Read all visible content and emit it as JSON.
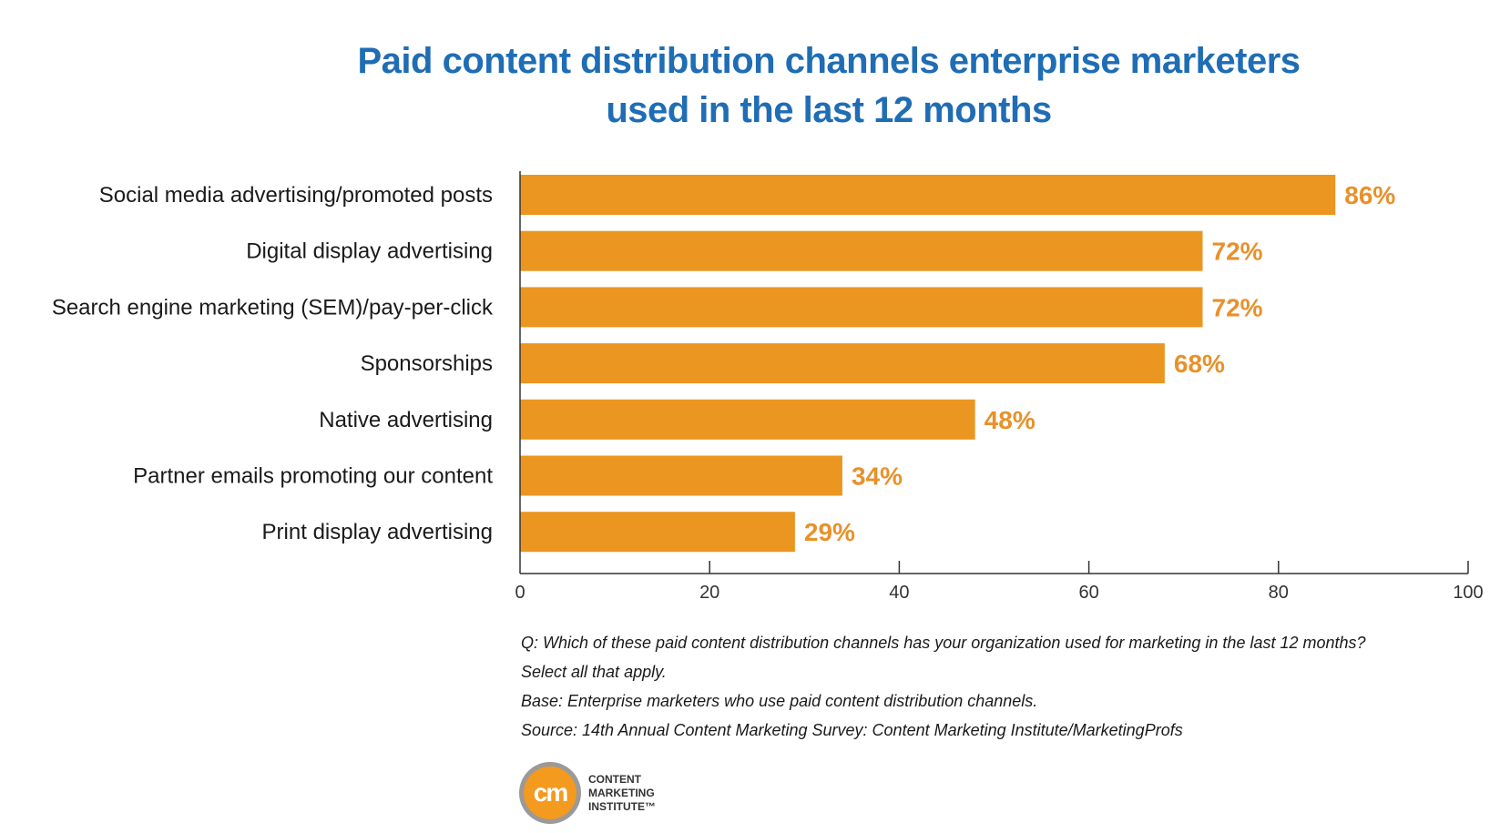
{
  "title": {
    "line1": "Paid content distribution channels enterprise marketers",
    "line2": "used in the last 12 months"
  },
  "colors": {
    "bar": "#eb9621",
    "value_label": "#e8912a",
    "title": "#1f6db5",
    "axis": "#333333"
  },
  "chart_data": {
    "type": "bar",
    "orientation": "horizontal",
    "categories": [
      "Social media advertising/promoted posts",
      "Digital display advertising",
      "Search engine marketing (SEM)/pay-per-click",
      "Sponsorships",
      "Native advertising",
      "Partner emails promoting our content",
      "Print display advertising"
    ],
    "values": [
      86,
      72,
      72,
      68,
      48,
      34,
      29
    ],
    "value_labels": [
      "86%",
      "72%",
      "72%",
      "68%",
      "48%",
      "34%",
      "29%"
    ],
    "xlim": [
      0,
      100
    ],
    "xticks": [
      0,
      20,
      40,
      60,
      80,
      100
    ],
    "grid": false,
    "legend": "none"
  },
  "notes": {
    "question": "Q: Which of these paid content distribution channels has your organization used for marketing in the last 12 months?",
    "instruction": "Select all that apply.",
    "base": "Base: Enterprise marketers who use paid content distribution channels.",
    "source": "Source: 14th Annual Content Marketing Survey: Content Marketing Institute/MarketingProfs"
  },
  "logo": {
    "mark": "cm",
    "line1": "CONTENT",
    "line2": "MARKETING",
    "line3": "INSTITUTE™"
  }
}
